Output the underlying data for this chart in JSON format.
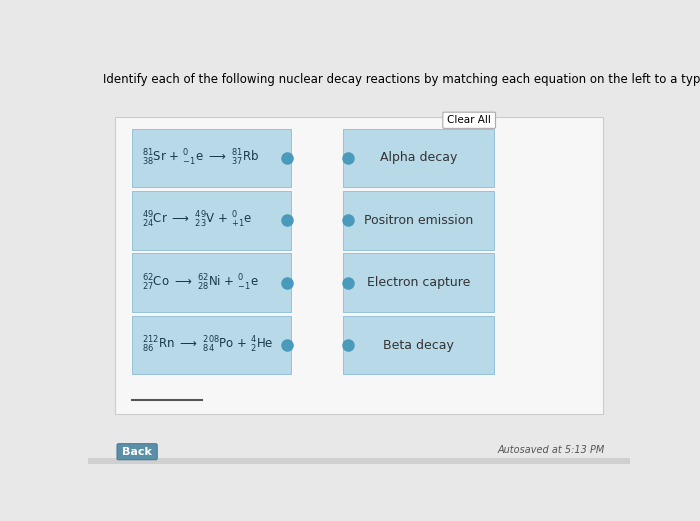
{
  "title": "Identify each of the following nuclear decay reactions by matching each equation on the left to a type of decay on the right.",
  "page_bg": "#e8e8e8",
  "panel_bg": "#f0f0f0",
  "panel_border": "#cccccc",
  "box_color": "#b8d9e8",
  "box_border_color": "#8bbdd4",
  "clear_all_bg": "#ffffff",
  "clear_all_border": "#aaaaaa",
  "clear_all_text": "Clear All",
  "right_labels": [
    "Alpha decay",
    "Positron emission",
    "Electron capture",
    "Beta decay"
  ],
  "dot_color": "#4a9abb",
  "autosave_text": "Autosaved at 5:13 PM",
  "back_button_text": "Back",
  "back_button_color": "#5a8fa8",
  "underline_color": "#555555",
  "title_fontsize": 8.5,
  "label_fontsize": 9,
  "eq_fontsize": 8.5
}
